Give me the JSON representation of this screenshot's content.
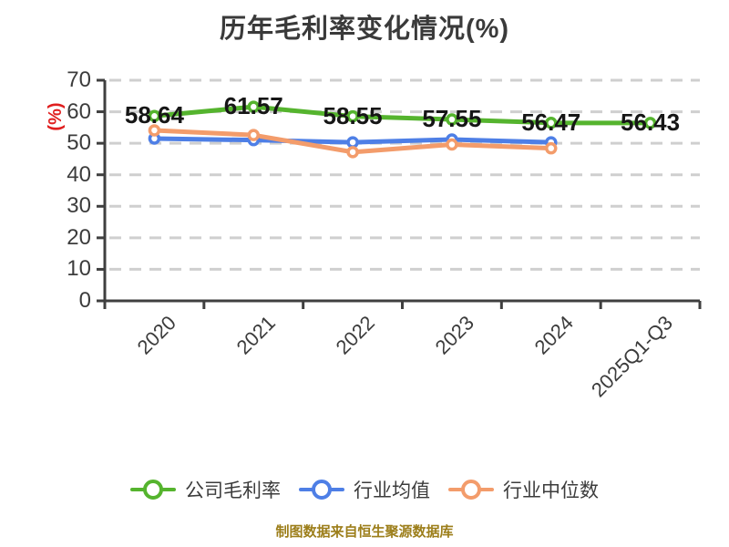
{
  "chart_data": {
    "type": "line",
    "title": "历年毛利率变化情况(%)",
    "ylabel": "(%)",
    "categories": [
      "2020",
      "2021",
      "2022",
      "2023",
      "2024",
      "2025Q1-Q3"
    ],
    "ylim": [
      0,
      70
    ],
    "ytick_step": 10,
    "grid": "horizontal-dashed",
    "legend_position": "bottom",
    "series": [
      {
        "name": "公司毛利率",
        "color": "#55b42e",
        "values": [
          58.64,
          61.57,
          58.55,
          57.55,
          56.47,
          56.43
        ],
        "labels": [
          "58.64",
          "61.57",
          "58.55",
          "57.55",
          "56.47",
          "56.43"
        ],
        "show_labels": true
      },
      {
        "name": "行业均值",
        "color": "#4e7fe6",
        "values": [
          51.5,
          51.0,
          50.3,
          51.2,
          50.3,
          null
        ],
        "show_labels": false
      },
      {
        "name": "行业中位数",
        "color": "#f39c6b",
        "values": [
          54.1,
          52.6,
          47.2,
          49.6,
          48.4,
          null
        ],
        "show_labels": false
      }
    ],
    "source_note": "制图数据来自恒生聚源数据库",
    "colors": {
      "title_text": "#3a3a3a",
      "axis_line": "#3f3f3f",
      "axis_text": "#3c3c3c",
      "grid_line": "#cfcfcf",
      "data_label_text": "#161616",
      "ylabel_text": "#e01f1f",
      "source_note_text": "#9c7e1a",
      "marker_fill": "#ffffff"
    }
  }
}
